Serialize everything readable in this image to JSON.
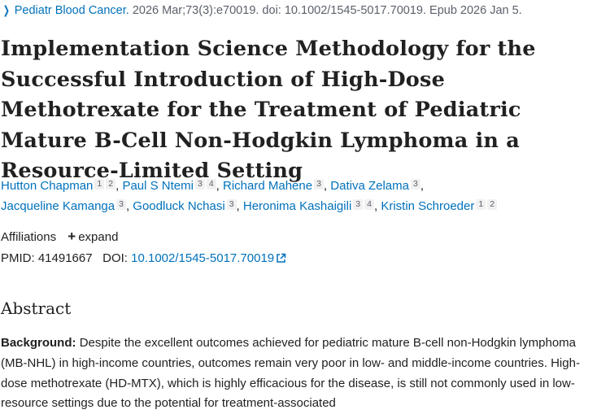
{
  "journal": {
    "name": "Pediatr Blood Cancer.",
    "citation": "2026 Mar;73(3):e70019. doi: 10.1002/1545-5017.70019. Epub 2026 Jan 5."
  },
  "article": {
    "title": "Implementation Science Methodology for the Successful Introduction of High-Dose Methotrexate for the Treatment of Pediatric Mature B-Cell Non-Hodgkin Lymphoma in a Resource-Limited Setting"
  },
  "authors": [
    {
      "name": "Hutton Chapman",
      "affils": [
        "1",
        "2"
      ]
    },
    {
      "name": "Paul S Ntemi",
      "affils": [
        "3",
        "4"
      ]
    },
    {
      "name": "Richard Mahene",
      "affils": [
        "3"
      ]
    },
    {
      "name": "Dativa Zelama",
      "affils": [
        "3"
      ]
    },
    {
      "name": "Jacqueline Kamanga",
      "affils": [
        "3"
      ]
    },
    {
      "name": "Goodluck Nchasi",
      "affils": [
        "3"
      ]
    },
    {
      "name": "Heronima Kashaigili",
      "affils": [
        "3",
        "4"
      ]
    },
    {
      "name": "Kristin Schroeder",
      "affils": [
        "1",
        "2"
      ]
    }
  ],
  "affiliations": {
    "label": "Affiliations",
    "expand_label": "expand"
  },
  "identifiers": {
    "pmid_label": "PMID:",
    "pmid": "41491667",
    "doi_label": "DOI:",
    "doi": "10.1002/1545-5017.70019"
  },
  "abstract": {
    "heading": "Abstract",
    "background_label": "Background:",
    "background_text": "Despite the excellent outcomes achieved for pediatric mature B-cell non-Hodgkin lymphoma (MB-NHL) in high-income countries, outcomes remain very poor in low- and middle-income countries. High-dose methotrexate (HD-MTX), which is highly efficacious for the disease, is still not commonly used in low-resource settings due to the potential for treatment-associated"
  },
  "colors": {
    "link": "#0071bc",
    "text": "#212121",
    "muted": "#5b616b"
  },
  "icons": {
    "journal_chevron": "chevron-right-icon",
    "expand": "plus-icon",
    "external_link": "external-link-icon"
  }
}
